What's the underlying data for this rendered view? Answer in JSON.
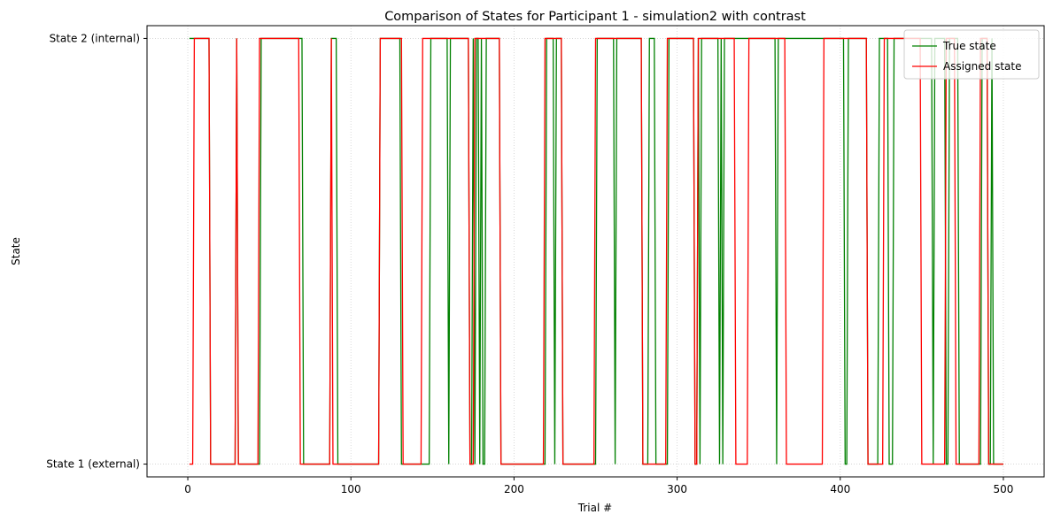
{
  "chart_data": {
    "type": "line",
    "title": "Comparison of States for Participant 1 - simulation2 with contrast",
    "xlabel": "Trial #",
    "ylabel": "State",
    "xlim": [
      -25,
      525
    ],
    "ylim": [
      -0.03,
      1.03
    ],
    "xticks": [
      0,
      100,
      200,
      300,
      400,
      500
    ],
    "yticks": [
      0,
      1
    ],
    "ytick_labels": [
      "State 1 (external)",
      "State 2 (internal)"
    ],
    "grid": true,
    "legend_position": "top-right",
    "trial_count": 500,
    "series": [
      {
        "name": "True state",
        "color": "#008000",
        "segments_in_state_2": [
          [
            1,
            13
          ],
          [
            30,
            30
          ],
          [
            45,
            70
          ],
          [
            88,
            91
          ],
          [
            118,
            130
          ],
          [
            149,
            159
          ],
          [
            161,
            172
          ],
          [
            175,
            175
          ],
          [
            177,
            178
          ],
          [
            180,
            180
          ],
          [
            183,
            191
          ],
          [
            220,
            224
          ],
          [
            226,
            229
          ],
          [
            251,
            261
          ],
          [
            263,
            278
          ],
          [
            283,
            286
          ],
          [
            295,
            310
          ],
          [
            313,
            313
          ],
          [
            315,
            325
          ],
          [
            327,
            327
          ],
          [
            329,
            360
          ],
          [
            362,
            402
          ],
          [
            405,
            416
          ],
          [
            424,
            429
          ],
          [
            433,
            456
          ],
          [
            458,
            464
          ],
          [
            467,
            472
          ],
          [
            487,
            490
          ],
          [
            493,
            493
          ]
        ]
      },
      {
        "name": "Assigned state",
        "color": "#ff0000",
        "segments_in_state_2": [
          [
            4,
            13
          ],
          [
            30,
            30
          ],
          [
            44,
            68
          ],
          [
            88,
            88
          ],
          [
            118,
            131
          ],
          [
            144,
            172
          ],
          [
            176,
            191
          ],
          [
            219,
            229
          ],
          [
            250,
            278
          ],
          [
            294,
            310
          ],
          [
            313,
            335
          ],
          [
            344,
            366
          ],
          [
            390,
            416
          ],
          [
            427,
            449
          ],
          [
            465,
            470
          ],
          [
            486,
            490
          ]
        ]
      }
    ]
  }
}
